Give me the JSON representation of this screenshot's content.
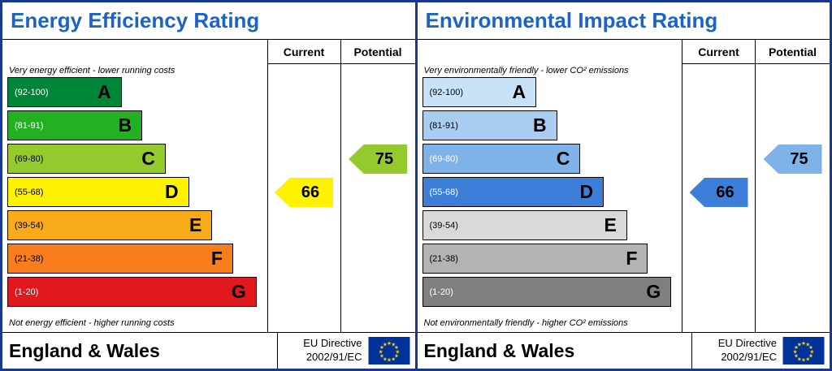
{
  "colors": {
    "panel_border": "#16388e",
    "title_text": "#1b63c6",
    "grid_line": "#000000",
    "eu_flag_blue": "#003399",
    "eu_star_yellow": "#ffcc00"
  },
  "panels": [
    {
      "title": "Energy Efficiency Rating",
      "current_label": "Current",
      "potential_label": "Potential",
      "top_note": "Very energy efficient - lower running costs",
      "bottom_note": "Not energy efficient - higher running costs",
      "bands": [
        {
          "letter": "A",
          "range": "(92-100)",
          "width_pct": 44,
          "color": "#008639",
          "text_color": "#ffffff"
        },
        {
          "letter": "B",
          "range": "(81-91)",
          "width_pct": 52,
          "color": "#23b123",
          "text_color": "#ffffff"
        },
        {
          "letter": "C",
          "range": "(69-80)",
          "width_pct": 61,
          "color": "#95ca2f",
          "text_color": "#000000"
        },
        {
          "letter": "D",
          "range": "(55-68)",
          "width_pct": 70,
          "color": "#fff200",
          "text_color": "#000000"
        },
        {
          "letter": "E",
          "range": "(39-54)",
          "width_pct": 79,
          "color": "#f8ab19",
          "text_color": "#000000"
        },
        {
          "letter": "F",
          "range": "(21-38)",
          "width_pct": 87,
          "color": "#f87e1d",
          "text_color": "#000000"
        },
        {
          "letter": "G",
          "range": "(1-20)",
          "width_pct": 96,
          "color": "#e2181f",
          "text_color": "#ffffff"
        }
      ],
      "current": {
        "value": "66",
        "row": 3,
        "color": "#fff200",
        "text_color": "#000000"
      },
      "potential": {
        "value": "75",
        "row": 2,
        "color": "#95ca2f",
        "text_color": "#000000"
      },
      "footer": {
        "region": "England & Wales",
        "directive_line1": "EU Directive",
        "directive_line2": "2002/91/EC"
      }
    },
    {
      "title": "Environmental Impact Rating",
      "current_label": "Current",
      "potential_label": "Potential",
      "top_note": "Very environmentally friendly - lower CO² emissions",
      "bottom_note": "Not environmentally friendly - higher CO² emissions",
      "bands": [
        {
          "letter": "A",
          "range": "(92-100)",
          "width_pct": 44,
          "color": "#c8e3f8",
          "text_color": "#000000"
        },
        {
          "letter": "B",
          "range": "(81-91)",
          "width_pct": 52,
          "color": "#a9ccf1",
          "text_color": "#000000"
        },
        {
          "letter": "C",
          "range": "(69-80)",
          "width_pct": 61,
          "color": "#7fb2e9",
          "text_color": "#ffffff"
        },
        {
          "letter": "D",
          "range": "(55-68)",
          "width_pct": 70,
          "color": "#3d7ed9",
          "text_color": "#ffffff"
        },
        {
          "letter": "E",
          "range": "(39-54)",
          "width_pct": 79,
          "color": "#d9d9d9",
          "text_color": "#000000"
        },
        {
          "letter": "F",
          "range": "(21-38)",
          "width_pct": 87,
          "color": "#b3b3b3",
          "text_color": "#000000"
        },
        {
          "letter": "G",
          "range": "(1-20)",
          "width_pct": 96,
          "color": "#7f7f7f",
          "text_color": "#ffffff"
        }
      ],
      "current": {
        "value": "66",
        "row": 3,
        "color": "#3d7ed9",
        "text_color": "#000000"
      },
      "potential": {
        "value": "75",
        "row": 2,
        "color": "#7fb2e9",
        "text_color": "#000000"
      },
      "footer": {
        "region": "England & Wales",
        "directive_line1": "EU Directive",
        "directive_line2": "2002/91/EC"
      }
    }
  ],
  "chart_data": [
    {
      "type": "bar",
      "title": "Energy Efficiency Rating",
      "categories": [
        "A",
        "B",
        "C",
        "D",
        "E",
        "F",
        "G"
      ],
      "band_ranges": [
        "92-100",
        "81-91",
        "69-80",
        "55-68",
        "39-54",
        "21-38",
        "1-20"
      ],
      "band_colors": [
        "#008639",
        "#23b123",
        "#95ca2f",
        "#fff200",
        "#f8ab19",
        "#f87e1d",
        "#e2181f"
      ],
      "values": {
        "current": 66,
        "potential": 75
      },
      "current_band": "D",
      "potential_band": "C",
      "annotations": [
        "Very energy efficient - lower running costs",
        "Not energy efficient - higher running costs"
      ],
      "legend": [
        "Current",
        "Potential"
      ],
      "footer": "England & Wales, EU Directive 2002/91/EC"
    },
    {
      "type": "bar",
      "title": "Environmental Impact Rating",
      "categories": [
        "A",
        "B",
        "C",
        "D",
        "E",
        "F",
        "G"
      ],
      "band_ranges": [
        "92-100",
        "81-91",
        "69-80",
        "55-68",
        "39-54",
        "21-38",
        "1-20"
      ],
      "band_colors": [
        "#c8e3f8",
        "#a9ccf1",
        "#7fb2e9",
        "#3d7ed9",
        "#d9d9d9",
        "#b3b3b3",
        "#7f7f7f"
      ],
      "values": {
        "current": 66,
        "potential": 75
      },
      "current_band": "D",
      "potential_band": "C",
      "annotations": [
        "Very environmentally friendly - lower CO² emissions",
        "Not environmentally friendly - higher CO² emissions"
      ],
      "legend": [
        "Current",
        "Potential"
      ],
      "footer": "England & Wales, EU Directive 2002/91/EC"
    }
  ]
}
